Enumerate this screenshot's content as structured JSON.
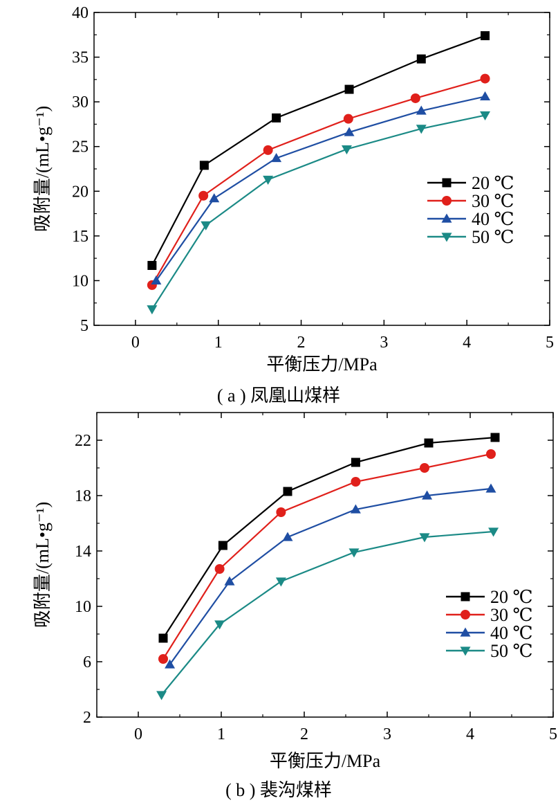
{
  "chart_data": [
    {
      "type": "line",
      "xlabel": "平衡压力/MPa",
      "ylabel": "吸附量/(mL•g⁻¹)",
      "caption": "( a ) 凤凰山煤样",
      "xlim": [
        -0.5,
        5
      ],
      "ylim": [
        5,
        40
      ],
      "xticks": [
        0,
        1,
        2,
        3,
        4,
        5
      ],
      "yticks": [
        5,
        10,
        15,
        20,
        25,
        30,
        35,
        40
      ],
      "legend_position": "center-right",
      "grid": false,
      "series": [
        {
          "name": "20 ℃",
          "color": "#000000",
          "marker": "square",
          "x": [
            0.2,
            0.83,
            1.7,
            2.58,
            3.45,
            4.22
          ],
          "y": [
            11.7,
            22.9,
            28.2,
            31.4,
            34.8,
            37.4
          ]
        },
        {
          "name": "30 ℃",
          "color": "#e0201b",
          "marker": "circle",
          "x": [
            0.2,
            0.82,
            1.6,
            2.57,
            3.38,
            4.22
          ],
          "y": [
            9.5,
            19.5,
            24.6,
            28.1,
            30.4,
            32.6
          ]
        },
        {
          "name": "40 ℃",
          "color": "#1f4ea3",
          "marker": "triangle-up",
          "x": [
            0.25,
            0.95,
            1.7,
            2.58,
            3.45,
            4.22
          ],
          "y": [
            10.0,
            19.2,
            23.7,
            26.6,
            29.0,
            30.6
          ]
        },
        {
          "name": "50 ℃",
          "color": "#1b8a86",
          "marker": "triangle-down",
          "x": [
            0.2,
            0.85,
            1.6,
            2.55,
            3.45,
            4.22
          ],
          "y": [
            6.8,
            16.2,
            21.3,
            24.7,
            27.0,
            28.5
          ]
        }
      ]
    },
    {
      "type": "line",
      "xlabel": "平衡压力/MPa",
      "ylabel": "吸附量/(mL•g⁻¹)",
      "caption": "( b ) 裴沟煤样",
      "xlim": [
        -0.5,
        5
      ],
      "ylim": [
        2,
        24
      ],
      "xticks": [
        0,
        1,
        2,
        3,
        4,
        5
      ],
      "yticks": [
        2,
        6,
        10,
        14,
        18,
        22
      ],
      "legend_position": "bottom-right",
      "grid": false,
      "series": [
        {
          "name": "20 ℃",
          "color": "#000000",
          "marker": "square",
          "x": [
            0.3,
            1.02,
            1.8,
            2.62,
            3.5,
            4.3
          ],
          "y": [
            7.7,
            14.4,
            18.3,
            20.4,
            21.8,
            22.2
          ]
        },
        {
          "name": "30 ℃",
          "color": "#e0201b",
          "marker": "circle",
          "x": [
            0.3,
            0.98,
            1.72,
            2.62,
            3.45,
            4.25
          ],
          "y": [
            6.2,
            12.7,
            16.8,
            19.0,
            20.0,
            21.0
          ]
        },
        {
          "name": "40 ℃",
          "color": "#1f4ea3",
          "marker": "triangle-up",
          "x": [
            0.38,
            1.1,
            1.8,
            2.62,
            3.48,
            4.25
          ],
          "y": [
            5.8,
            11.8,
            15.0,
            17.0,
            18.0,
            18.5
          ]
        },
        {
          "name": "50 ℃",
          "color": "#1b8a86",
          "marker": "triangle-down",
          "x": [
            0.28,
            0.98,
            1.72,
            2.6,
            3.45,
            4.28
          ],
          "y": [
            3.6,
            8.7,
            11.8,
            13.9,
            15.0,
            15.4
          ]
        }
      ]
    }
  ]
}
